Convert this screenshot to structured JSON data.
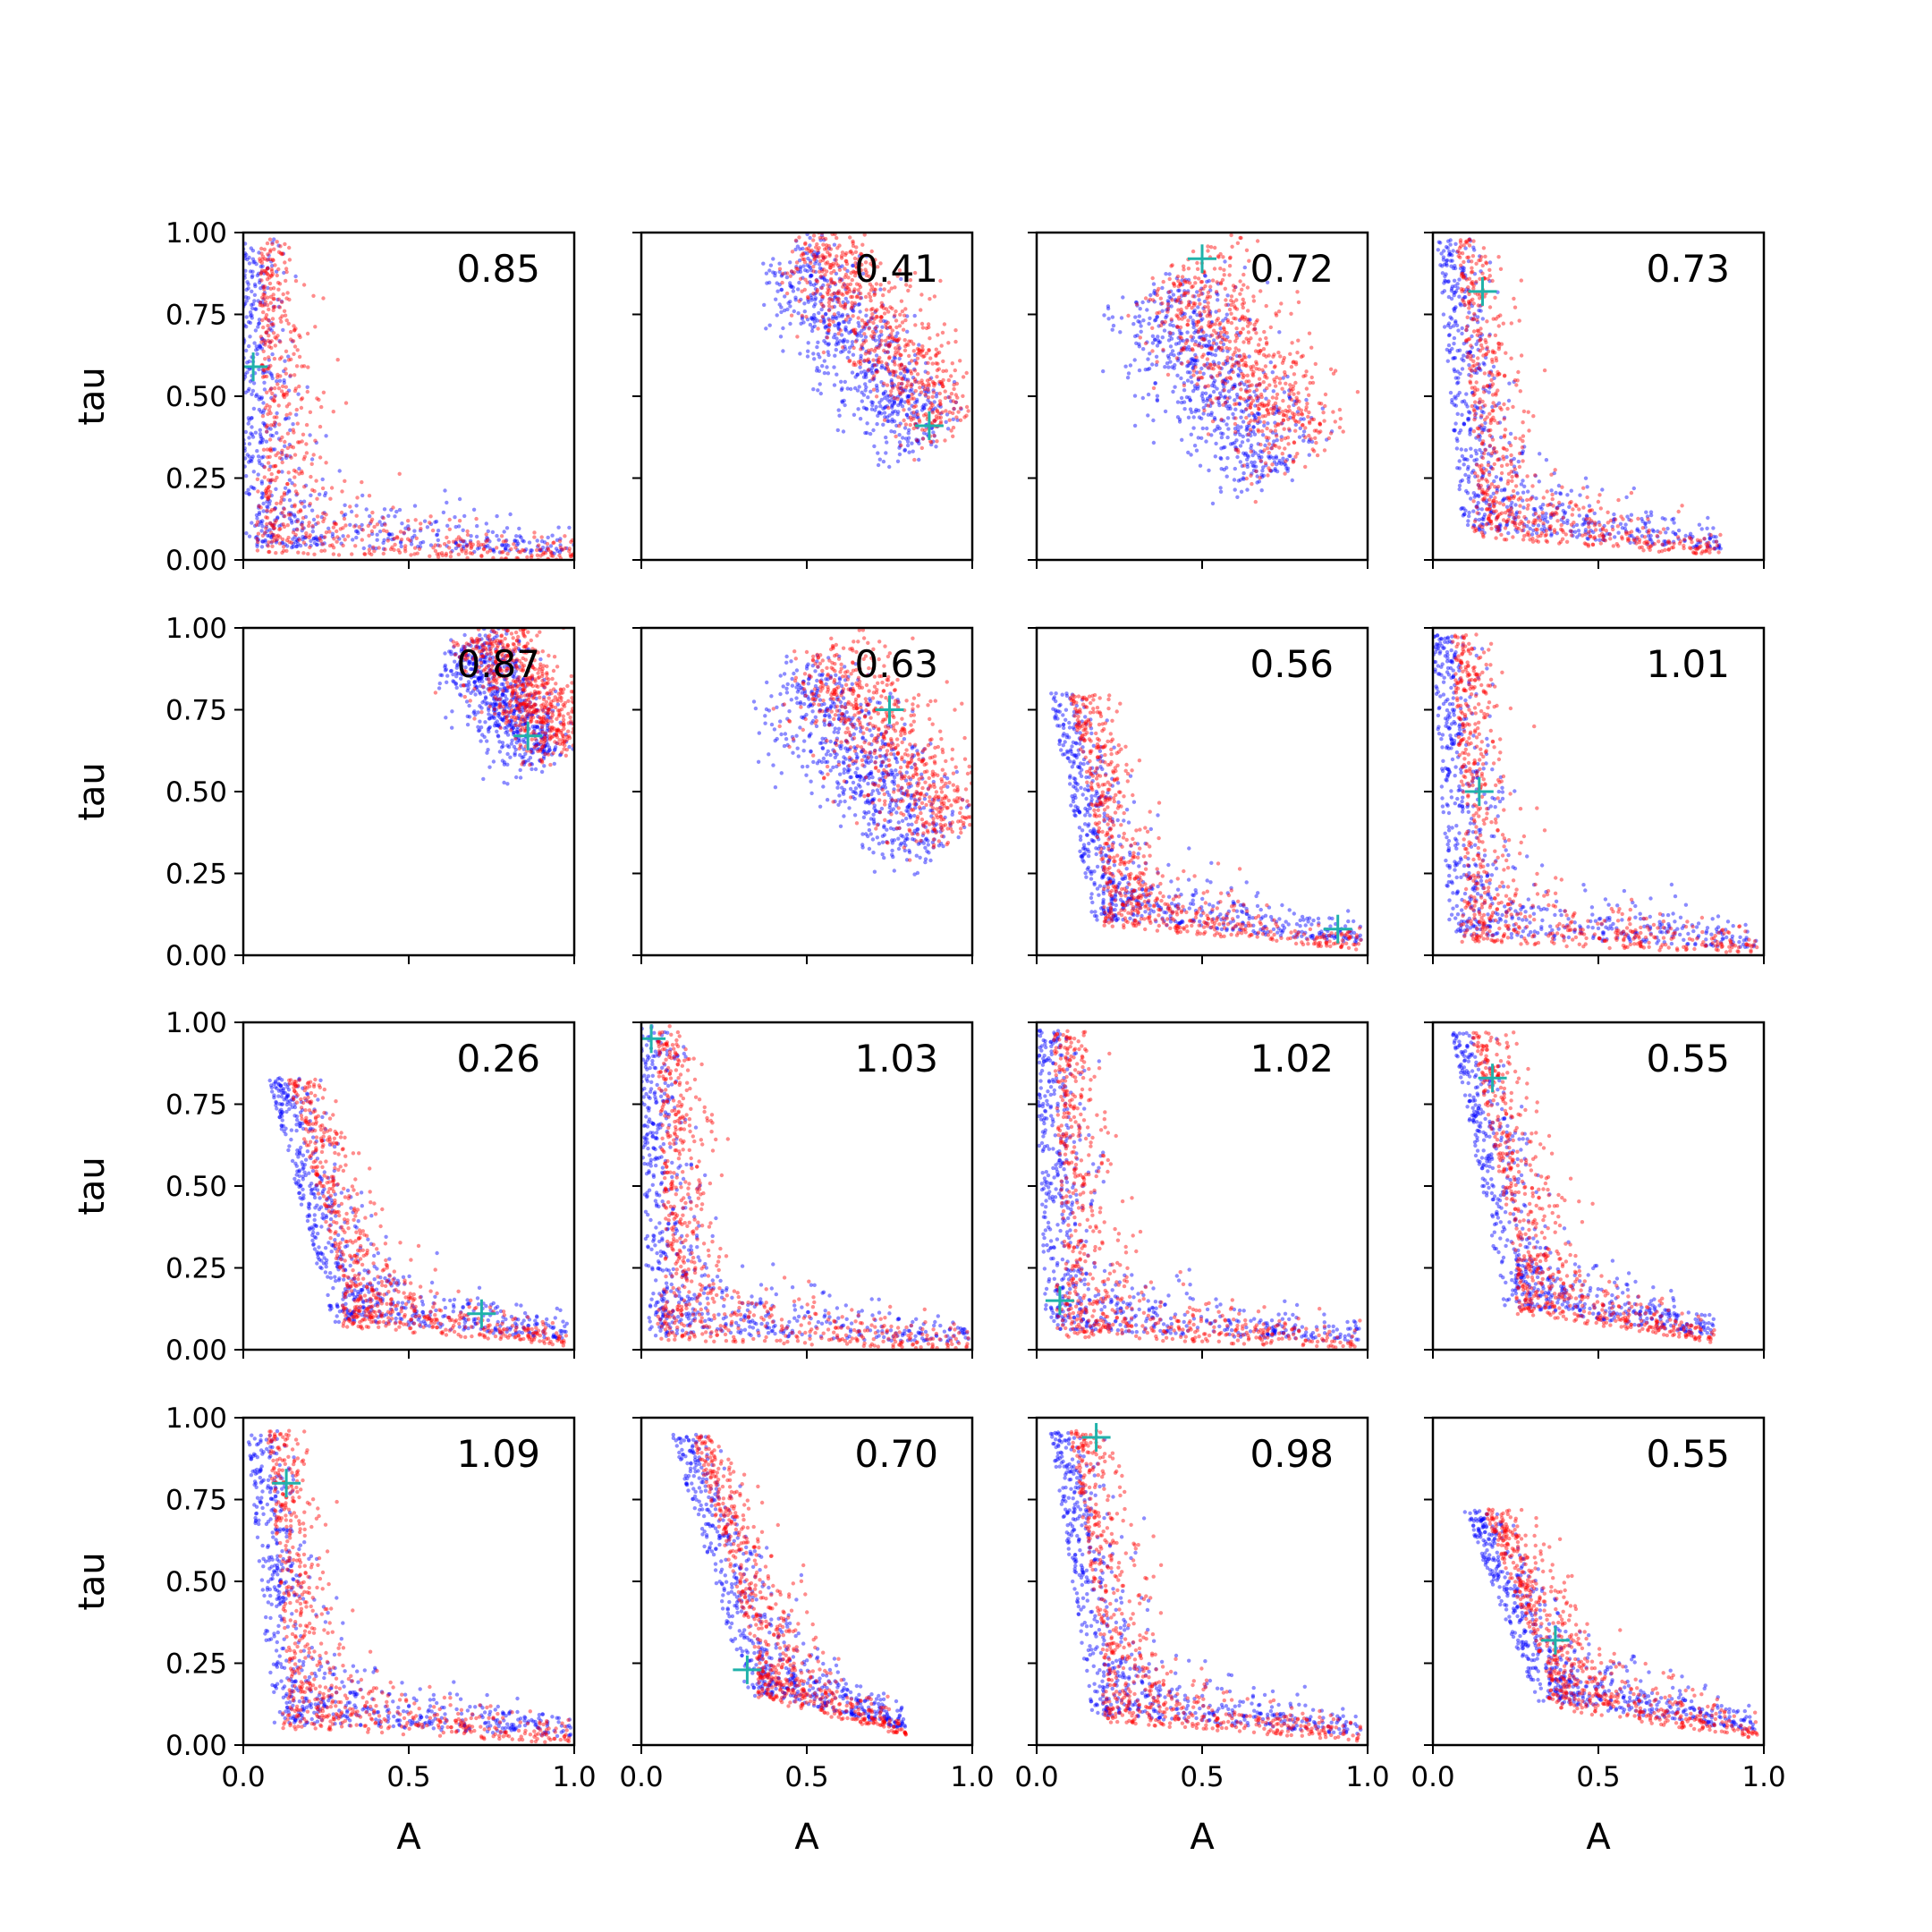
{
  "chart_data": {
    "type": "scatter",
    "layout": {
      "rows": 4,
      "cols": 4
    },
    "xlabel": "A",
    "ylabel": "tau",
    "xlim": [
      0.0,
      1.0
    ],
    "ylim": [
      0.0,
      1.0
    ],
    "x_ticks": [
      "0.0",
      "0.5",
      "1.0"
    ],
    "y_ticks": [
      "0.00",
      "0.25",
      "0.50",
      "0.75",
      "1.00"
    ],
    "x_tick_values": [
      0.0,
      0.5,
      1.0
    ],
    "y_tick_values": [
      0.0,
      0.25,
      0.5,
      0.75,
      1.0
    ],
    "colors": {
      "series_a": "#0000ff",
      "series_b": "#ff0000",
      "marker": "#20b2aa"
    },
    "panels": [
      {
        "value_label": "0.85",
        "marker": [
          0.03,
          0.59
        ],
        "shape": "L",
        "corner": [
          0.04,
          0.03
        ],
        "v_len": 0.95,
        "h_len": 0.96
      },
      {
        "value_label": "0.41",
        "marker": [
          0.87,
          0.41
        ],
        "shape": "band",
        "from": [
          0.48,
          0.95
        ],
        "to": [
          0.9,
          0.38
        ],
        "spread": 0.07
      },
      {
        "value_label": "0.72",
        "marker": [
          0.5,
          0.92
        ],
        "shape": "band",
        "from": [
          0.38,
          0.85
        ],
        "to": [
          0.78,
          0.3
        ],
        "spread": 0.09
      },
      {
        "value_label": "0.73",
        "marker": [
          0.15,
          0.82
        ],
        "shape": "L",
        "corner": [
          0.12,
          0.08
        ],
        "v_len": 0.9,
        "h_len": 0.75
      },
      {
        "value_label": "0.87",
        "marker": [
          0.86,
          0.67
        ],
        "shape": "band",
        "from": [
          0.7,
          0.97
        ],
        "to": [
          0.95,
          0.62
        ],
        "spread": 0.06
      },
      {
        "value_label": "0.63",
        "marker": [
          0.75,
          0.75
        ],
        "shape": "band",
        "from": [
          0.5,
          0.9
        ],
        "to": [
          0.92,
          0.35
        ],
        "spread": 0.08
      },
      {
        "value_label": "0.56",
        "marker": [
          0.91,
          0.08
        ],
        "shape": "L",
        "corner": [
          0.2,
          0.1
        ],
        "v_len": 0.7,
        "h_len": 0.78
      },
      {
        "value_label": "1.01",
        "marker": [
          0.14,
          0.5
        ],
        "shape": "L",
        "corner": [
          0.08,
          0.05
        ],
        "v_len": 0.93,
        "h_len": 0.9
      },
      {
        "value_label": "0.26",
        "marker": [
          0.72,
          0.11
        ],
        "shape": "L",
        "corner": [
          0.3,
          0.08
        ],
        "v_len": 0.75,
        "h_len": 0.68
      },
      {
        "value_label": "1.03",
        "marker": [
          0.03,
          0.95
        ],
        "shape": "L",
        "corner": [
          0.05,
          0.04
        ],
        "v_len": 0.95,
        "h_len": 0.94
      },
      {
        "value_label": "1.02",
        "marker": [
          0.07,
          0.15
        ],
        "shape": "L",
        "corner": [
          0.06,
          0.05
        ],
        "v_len": 0.93,
        "h_len": 0.92
      },
      {
        "value_label": "0.55",
        "marker": [
          0.18,
          0.83
        ],
        "shape": "L",
        "corner": [
          0.25,
          0.12
        ],
        "v_len": 0.85,
        "h_len": 0.6
      },
      {
        "value_label": "1.09",
        "marker": [
          0.13,
          0.8
        ],
        "shape": "L",
        "corner": [
          0.12,
          0.06
        ],
        "v_len": 0.9,
        "h_len": 0.87
      },
      {
        "value_label": "0.70",
        "marker": [
          0.32,
          0.23
        ],
        "shape": "L",
        "corner": [
          0.35,
          0.15
        ],
        "v_len": 0.8,
        "h_len": 0.45
      },
      {
        "value_label": "0.98",
        "marker": [
          0.18,
          0.94
        ],
        "shape": "L",
        "corner": [
          0.2,
          0.08
        ],
        "v_len": 0.88,
        "h_len": 0.78
      },
      {
        "value_label": "0.55",
        "marker": [
          0.37,
          0.32
        ],
        "shape": "L",
        "corner": [
          0.35,
          0.12
        ],
        "v_len": 0.6,
        "h_len": 0.63
      }
    ]
  }
}
